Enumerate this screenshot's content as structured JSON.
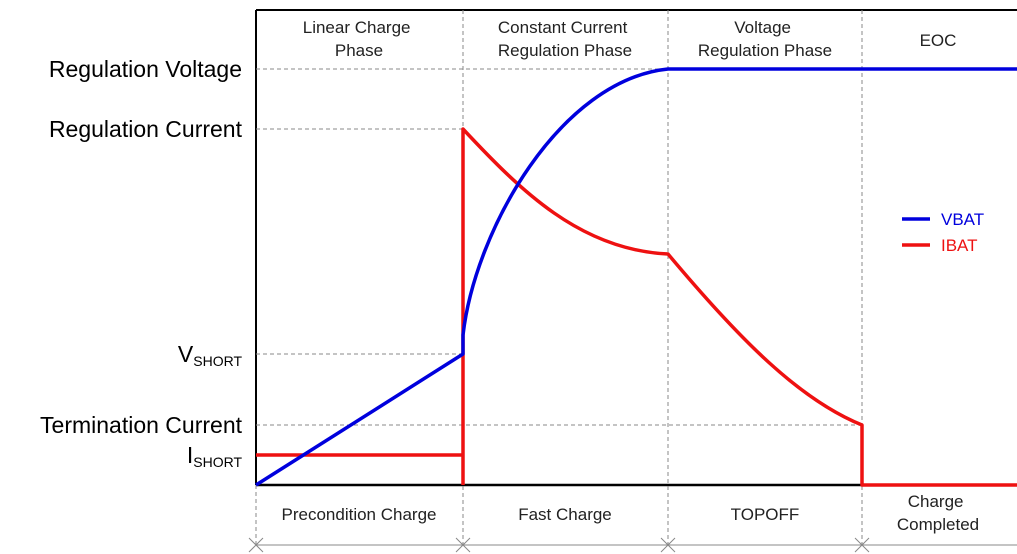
{
  "phases": [
    {
      "lines": [
        "Linear Charge",
        "Phase"
      ]
    },
    {
      "lines": [
        "Constant Current",
        "Regulation Phase"
      ]
    },
    {
      "lines": [
        "Voltage",
        "Regulation Phase"
      ]
    },
    {
      "lines": [
        "EOC"
      ]
    }
  ],
  "bottom_labels": [
    {
      "lines": [
        "Precondition Charge"
      ]
    },
    {
      "lines": [
        "Fast Charge"
      ]
    },
    {
      "lines": [
        "TOPOFF"
      ]
    },
    {
      "lines": [
        "Charge",
        "Completed"
      ]
    }
  ],
  "y_labels": {
    "regulation_voltage": "Regulation Voltage",
    "regulation_current": "Regulation Current",
    "vshort_main": "V",
    "vshort_sub": "SHORT",
    "termination_current": "Termination Current",
    "ishort_main": "I",
    "ishort_sub": "SHORT"
  },
  "legend": [
    {
      "name": "VBAT",
      "color": "#0000dd"
    },
    {
      "name": "IBAT",
      "color": "#ee1111"
    }
  ],
  "colors": {
    "vbat": "#0000dd",
    "ibat": "#ee1111"
  }
}
